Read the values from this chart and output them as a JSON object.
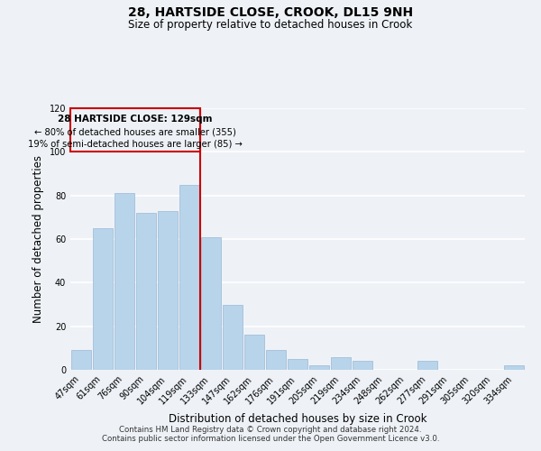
{
  "title": "28, HARTSIDE CLOSE, CROOK, DL15 9NH",
  "subtitle": "Size of property relative to detached houses in Crook",
  "xlabel": "Distribution of detached houses by size in Crook",
  "ylabel": "Number of detached properties",
  "bar_labels": [
    "47sqm",
    "61sqm",
    "76sqm",
    "90sqm",
    "104sqm",
    "119sqm",
    "133sqm",
    "147sqm",
    "162sqm",
    "176sqm",
    "191sqm",
    "205sqm",
    "219sqm",
    "234sqm",
    "248sqm",
    "262sqm",
    "277sqm",
    "291sqm",
    "305sqm",
    "320sqm",
    "334sqm"
  ],
  "bar_values": [
    9,
    65,
    81,
    72,
    73,
    85,
    61,
    30,
    16,
    9,
    5,
    2,
    6,
    4,
    0,
    0,
    4,
    0,
    0,
    0,
    2
  ],
  "bar_color": "#b8d4ea",
  "bar_edge_color": "#9ab8d4",
  "ref_line_color": "#cc0000",
  "box_edge_color": "#cc0000",
  "ylim": [
    0,
    120
  ],
  "yticks": [
    0,
    20,
    40,
    60,
    80,
    100,
    120
  ],
  "ref_bar_index": 6,
  "annotation_title": "28 HARTSIDE CLOSE: 129sqm",
  "annotation_line1": "← 80% of detached houses are smaller (355)",
  "annotation_line2": "19% of semi-detached houses are larger (85) →",
  "footer_line1": "Contains HM Land Registry data © Crown copyright and database right 2024.",
  "footer_line2": "Contains public sector information licensed under the Open Government Licence v3.0.",
  "background_color": "#eef2f7",
  "grid_color": "#ffffff"
}
